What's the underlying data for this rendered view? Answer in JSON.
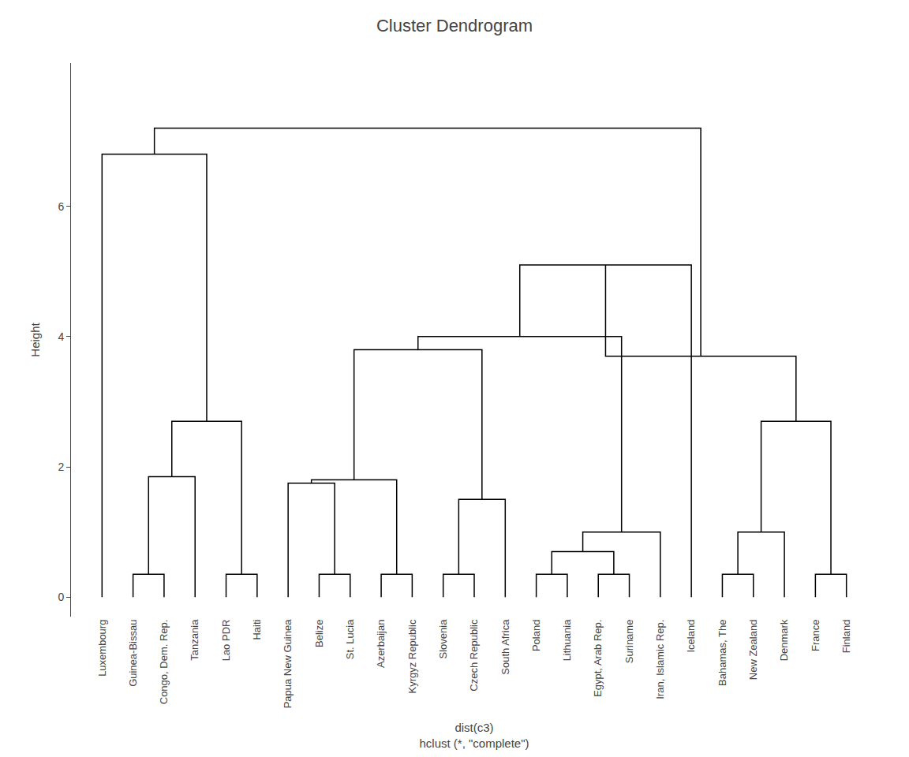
{
  "chart_data": {
    "type": "dendrogram",
    "title": "Cluster Dendrogram",
    "xlabel": "dist(c3)\nhclust (*, \"complete\")",
    "ylabel": "Height",
    "categories": [
      "Luxembourg",
      "Guinea-Bissau",
      "Congo, Dem. Rep.",
      "Tanzania",
      "Lao PDR",
      "Haiti",
      "Papua New Guinea",
      "Belize",
      "St. Lucia",
      "Azerbaijan",
      "Kyrgyz Republic",
      "Slovenia",
      "Czech Republic",
      "South Africa",
      "Poland",
      "Lithuania",
      "Egypt, Arab Rep.",
      "Suriname",
      "Iran, Islamic Rep.",
      "Iceland",
      "Bahamas, The",
      "New Zealand",
      "Denmark",
      "France",
      "Finland"
    ],
    "merge": [
      [
        -2,
        -3
      ],
      [
        1,
        -4
      ],
      [
        -5,
        -6
      ],
      [
        2,
        3
      ],
      [
        -1,
        4
      ],
      [
        -8,
        -9
      ],
      [
        -10,
        -11
      ],
      [
        -7,
        6
      ],
      [
        8,
        7
      ],
      [
        -12,
        -13
      ],
      [
        -14,
        10
      ],
      [
        9,
        11
      ],
      [
        -15,
        -16
      ],
      [
        -17,
        -18
      ],
      [
        13,
        14
      ],
      [
        -19,
        15
      ],
      [
        12,
        16
      ],
      [
        17,
        -20
      ],
      [
        -21,
        -22
      ],
      [
        -23,
        19
      ],
      [
        -24,
        -25
      ],
      [
        20,
        21
      ],
      [
        18,
        22
      ],
      [
        5,
        23
      ]
    ],
    "height": [
      0.35,
      1.85,
      0.35,
      2.7,
      6.8,
      0.35,
      0.35,
      1.75,
      1.8,
      0.35,
      1.5,
      3.8,
      0.35,
      0.35,
      0.7,
      1.0,
      4.0,
      5.1,
      0.35,
      1.0,
      0.35,
      2.7,
      3.7,
      7.2
    ],
    "color": "#000000",
    "ylim": [
      -0.3,
      8.2
    ],
    "yticks": [
      0,
      2,
      4,
      6
    ],
    "grid": false
  }
}
